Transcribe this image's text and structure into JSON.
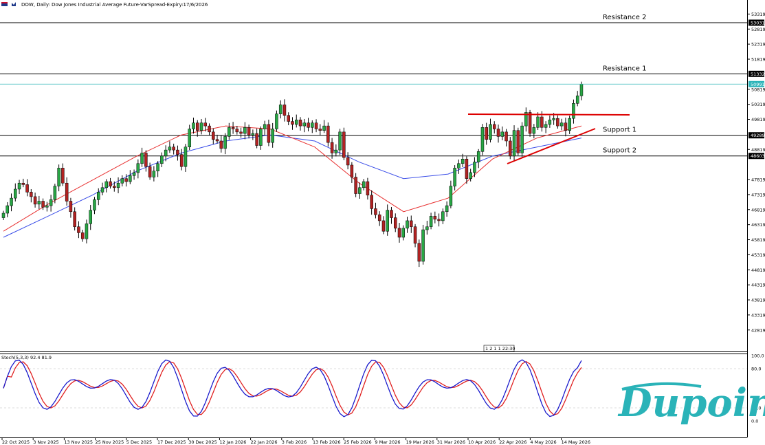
{
  "header": {
    "title": "DOW, Daily:  Dow Jones Industrial Average Future-VarSpread-Expiry:17/6/2026"
  },
  "levels": [
    {
      "name": "Resistance 2",
      "value": 53031
    },
    {
      "name": "Resistance 1",
      "value": 51332
    },
    {
      "name": "Support 1",
      "value": 49289
    },
    {
      "name": "Support 2",
      "value": 48603
    }
  ],
  "current_price": {
    "value": 50991,
    "label": "50991"
  },
  "countdown": "1 2 1 1 22:30",
  "stoch_header": "Stoch(5,3,3) 92.4 81.9",
  "brand": {
    "name": "Dupoin",
    "color": "#2ab3b8"
  },
  "colors": {
    "bull": "#28a745",
    "bear": "#b22222",
    "ma_fast": "#e83030",
    "ma_slow": "#3b4ee8",
    "stoch_k": "#1a1acc",
    "stoch_d": "#e02020",
    "trend": "#dd0000",
    "price_line": "#2ab3b8"
  },
  "chart_data": {
    "type": "candlestick",
    "title": "DOW, Daily:  Dow Jones Industrial Average Future-VarSpread-Expiry:17/6/2026",
    "y_ticks": [
      53319,
      52819,
      52319,
      51819,
      50819,
      50319,
      49819,
      48819,
      47819,
      47319,
      46819,
      46319,
      45819,
      45319,
      44819,
      44319,
      43819,
      43319,
      42819
    ],
    "ylim": [
      42500,
      53700
    ],
    "x_labels": [
      "22 Oct 2025",
      "3 Nov 2025",
      "13 Nov 2025",
      "25 Nov 2025",
      "5 Dec 2025",
      "17 Dec 2025",
      "30 Dec 2025",
      "12 Jan 2026",
      "22 Jan 2026",
      "3 Feb 2026",
      "13 Feb 2026",
      "25 Feb 2026",
      "9 Mar 2026",
      "19 Mar 2026",
      "31 Mar 2026",
      "10 Apr 2026",
      "22 Apr 2026",
      "4 May 2026",
      "14 May 2026"
    ],
    "closes": [
      46700,
      46950,
      47200,
      47500,
      47700,
      47650,
      47400,
      47250,
      47000,
      47100,
      46900,
      46950,
      47150,
      47600,
      48200,
      47700,
      47100,
      46750,
      46250,
      46050,
      45850,
      46350,
      46800,
      47150,
      47400,
      47550,
      47750,
      47600,
      47550,
      47700,
      47850,
      47750,
      47950,
      48050,
      48350,
      48700,
      48250,
      47900,
      48100,
      48350,
      48600,
      48800,
      48900,
      48800,
      48650,
      48250,
      48900,
      49500,
      49700,
      49450,
      49700,
      49600,
      49400,
      49150,
      49100,
      48850,
      49250,
      49550,
      49500,
      49400,
      49350,
      49550,
      49300,
      49350,
      48950,
      49500,
      49650,
      49050,
      49500,
      50000,
      50300,
      49950,
      49750,
      49650,
      49800,
      49600,
      49700,
      49550,
      49700,
      49500,
      49450,
      49600,
      49050,
      48700,
      48800,
      49400,
      48550,
      48300,
      47900,
      47350,
      47550,
      47750,
      47300,
      46850,
      46650,
      46450,
      46100,
      46800,
      46550,
      46200,
      45900,
      46200,
      46450,
      46250,
      45700,
      45100,
      46150,
      46250,
      46600,
      46500,
      46450,
      46750,
      46950,
      47600,
      48200,
      48350,
      48500,
      47850,
      48050,
      48400,
      48750,
      49550,
      49150,
      49650,
      49500,
      49250,
      49400,
      49100,
      48600,
      49450,
      48700,
      49600,
      50050,
      49350,
      49550,
      49900,
      49550,
      49650,
      49800,
      49850,
      49600,
      49700,
      49450,
      49850,
      50350,
      50600,
      50991
    ],
    "ma_fast_approx": [
      46100,
      47000,
      47800,
      48600,
      49300,
      49600,
      49500,
      48900,
      47700,
      46750,
      47200,
      48500,
      49200,
      49600
    ],
    "ma_slow_approx": [
      45900,
      46600,
      47300,
      48100,
      48700,
      49100,
      49300,
      49100,
      48400,
      47850,
      48000,
      48600,
      48900,
      49200
    ],
    "stoch": {
      "k_last": 92.4,
      "d_last": 81.9,
      "ticks": [
        100.0,
        80.0,
        20.0,
        0.0
      ]
    }
  }
}
